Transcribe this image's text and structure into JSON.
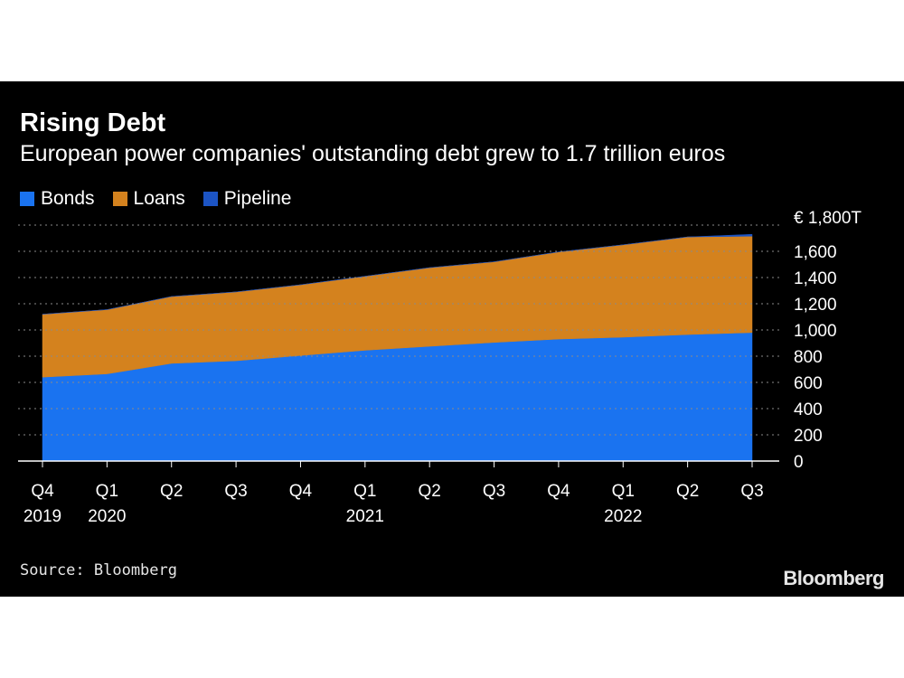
{
  "chart_data": {
    "type": "area",
    "stacked": true,
    "title": "Rising Debt",
    "subtitle": "European power companies' outstanding debt grew to 1.7 trillion euros",
    "categories": [
      "Q4 2019",
      "Q1 2020",
      "Q2 2020",
      "Q3 2020",
      "Q4 2020",
      "Q1 2021",
      "Q2 2021",
      "Q3 2021",
      "Q4 2021",
      "Q1 2022",
      "Q2 2022",
      "Q3 2022"
    ],
    "x_tick_labels": [
      {
        "quarter": "Q4",
        "year": "2019"
      },
      {
        "quarter": "Q1",
        "year": "2020"
      },
      {
        "quarter": "Q2",
        "year": ""
      },
      {
        "quarter": "Q3",
        "year": ""
      },
      {
        "quarter": "Q4",
        "year": ""
      },
      {
        "quarter": "Q1",
        "year": "2021"
      },
      {
        "quarter": "Q2",
        "year": ""
      },
      {
        "quarter": "Q3",
        "year": ""
      },
      {
        "quarter": "Q4",
        "year": ""
      },
      {
        "quarter": "Q1",
        "year": "2022"
      },
      {
        "quarter": "Q2",
        "year": ""
      },
      {
        "quarter": "Q3",
        "year": ""
      }
    ],
    "series": [
      {
        "name": "Bonds",
        "color": "#1a73f0",
        "values": [
          640,
          665,
          745,
          765,
          805,
          845,
          875,
          905,
          930,
          945,
          965,
          980
        ]
      },
      {
        "name": "Loans",
        "color": "#d4821e",
        "values": [
          480,
          490,
          510,
          525,
          540,
          565,
          600,
          615,
          665,
          705,
          745,
          735
        ]
      },
      {
        "name": "Pipeline",
        "color": "#1c54c4",
        "values": [
          0,
          0,
          0,
          0,
          0,
          0,
          0,
          0,
          0,
          0,
          0,
          15
        ]
      }
    ],
    "y_axis": {
      "min": 0,
      "max": 1800,
      "ticks": [
        0,
        200,
        400,
        600,
        800,
        1000,
        1200,
        1400,
        1600,
        1800
      ],
      "tick_labels": [
        "0",
        "200",
        "400",
        "600",
        "800",
        "1,000",
        "1,200",
        "1,400",
        "1,600",
        "€ 1,800T"
      ],
      "position": "right"
    },
    "grid": "horizontal-dotted",
    "legend_position": "top-left"
  },
  "source": "Source: Bloomberg",
  "logo": "Bloomberg"
}
